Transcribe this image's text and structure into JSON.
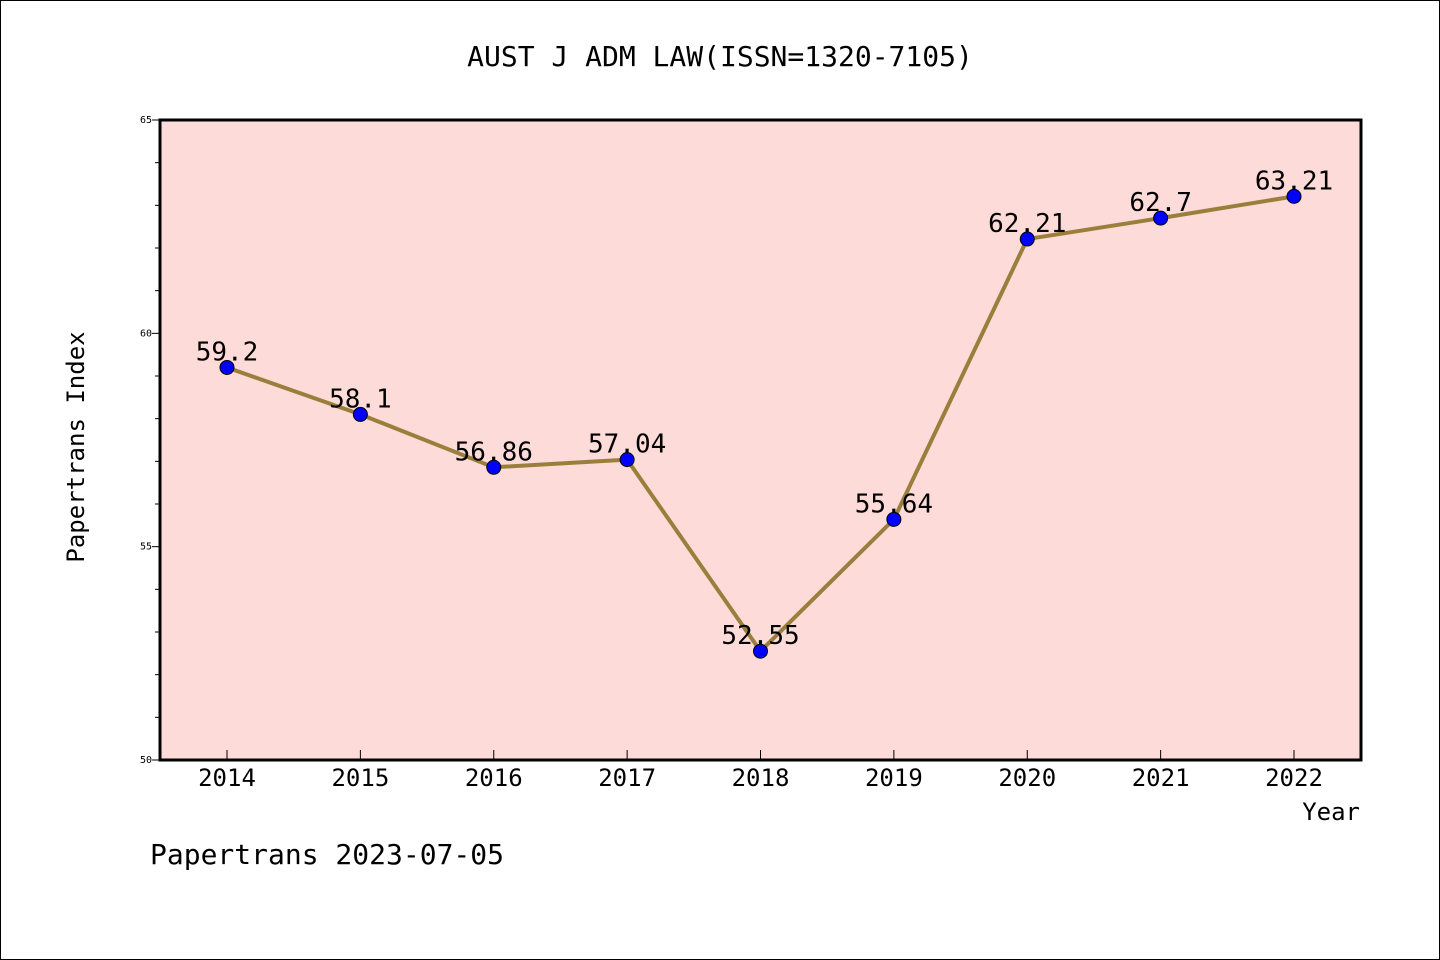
{
  "chart_data": {
    "type": "line",
    "title": "AUST J ADM LAW(ISSN=1320-7105)",
    "xlabel": "Year",
    "ylabel": "Papertrans Index",
    "x": [
      "2014",
      "2015",
      "2016",
      "2017",
      "2018",
      "2019",
      "2020",
      "2021",
      "2022"
    ],
    "series": [
      {
        "values": [
          59.2,
          58.1,
          56.86,
          57.04,
          52.55,
          55.64,
          62.21,
          62.7,
          63.21
        ]
      }
    ],
    "data_labels": [
      "59.2",
      "58.1",
      "56.86",
      "57.04",
      "52.55",
      "55.64",
      "62.21",
      "62.7",
      "63.21"
    ],
    "ylim": [
      50,
      65
    ],
    "yticks": [
      "50",
      "55",
      "60",
      "65"
    ],
    "grid": false,
    "colors": {
      "line": "#9a7f3c",
      "marker": "#0000ff",
      "plot_bg": "#fddbd8"
    },
    "footer": "Papertrans 2023-07-05"
  }
}
